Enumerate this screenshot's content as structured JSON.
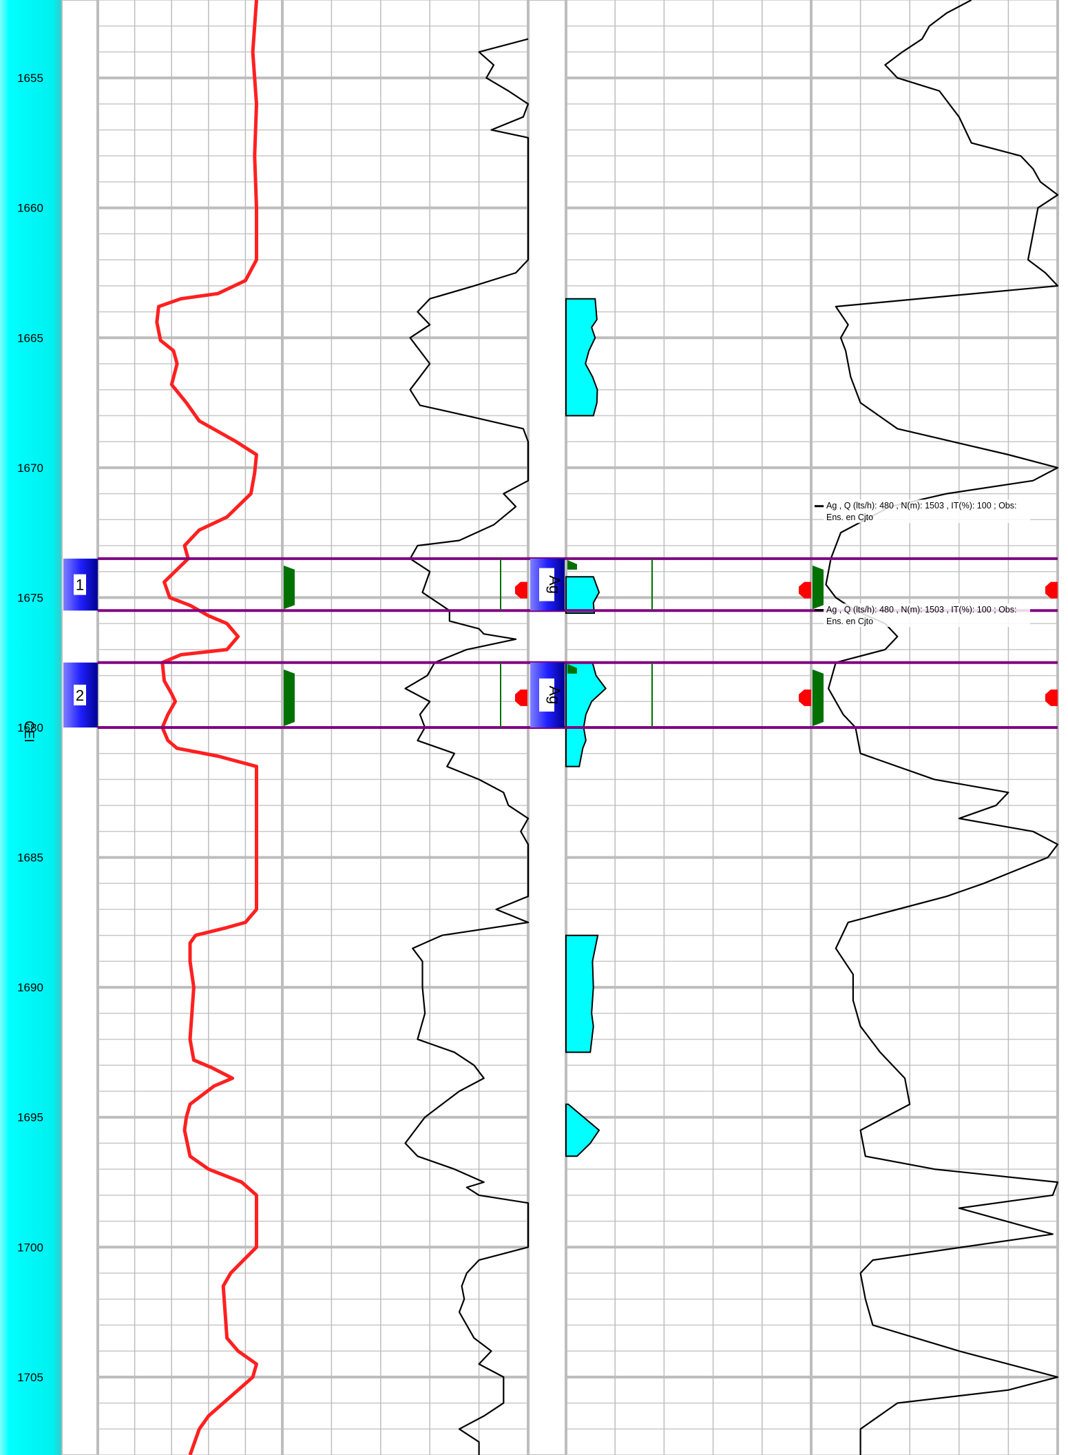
{
  "chart_data": {
    "type": "line",
    "title": "",
    "depth_axis": {
      "range": [
        1652,
        1708
      ],
      "tick_labels": [
        "1655",
        "1660",
        "1665",
        "1670",
        "1675",
        "1680",
        "1685",
        "1690",
        "1695",
        "1700",
        "1705"
      ],
      "formation_label": "CEI",
      "orientation": "depth increases downward"
    },
    "intervals": [
      {
        "label": "1",
        "fluid": "Ag",
        "top": 1673.5,
        "base": 1675.5
      },
      {
        "label": "2",
        "fluid": "Ag",
        "top": 1677.5,
        "base": 1680.0
      }
    ],
    "annotations": [
      {
        "line1": "Ag , Q (lts/h): 480 , N(m): 1503 , IT(%): 100 ; Obs:",
        "line2": "Ens. en Cjto"
      },
      {
        "line1": "Ag , Q (lts/h): 480 , N(m): 1503 , IT(%): 100 ; Obs:",
        "line2": "Ens. en Cjto"
      }
    ],
    "tracks": [
      {
        "name": "",
        "color": "#ff2020",
        "range": [
          0,
          1
        ],
        "points": [
          [
            1652.0,
            0.86
          ],
          [
            1654.0,
            0.84
          ],
          [
            1656.0,
            0.86
          ],
          [
            1658.0,
            0.85
          ],
          [
            1660.0,
            0.86
          ],
          [
            1662.0,
            0.86
          ],
          [
            1662.8,
            0.8
          ],
          [
            1663.3,
            0.65
          ],
          [
            1663.5,
            0.45
          ],
          [
            1663.8,
            0.33
          ],
          [
            1664.4,
            0.32
          ],
          [
            1665.1,
            0.34
          ],
          [
            1665.5,
            0.41
          ],
          [
            1666.0,
            0.43
          ],
          [
            1666.8,
            0.4
          ],
          [
            1667.5,
            0.48
          ],
          [
            1668.2,
            0.55
          ],
          [
            1669.0,
            0.75
          ],
          [
            1669.5,
            0.86
          ],
          [
            1670.2,
            0.85
          ],
          [
            1671.0,
            0.83
          ],
          [
            1671.9,
            0.7
          ],
          [
            1672.4,
            0.55
          ],
          [
            1673.0,
            0.47
          ],
          [
            1673.5,
            0.49
          ],
          [
            1674.4,
            0.36
          ],
          [
            1675.0,
            0.39
          ],
          [
            1675.3,
            0.5
          ],
          [
            1675.7,
            0.6
          ],
          [
            1676.0,
            0.7
          ],
          [
            1676.5,
            0.76
          ],
          [
            1677.0,
            0.7
          ],
          [
            1677.2,
            0.45
          ],
          [
            1677.5,
            0.35
          ],
          [
            1678.2,
            0.36
          ],
          [
            1678.7,
            0.4
          ],
          [
            1679.0,
            0.42
          ],
          [
            1679.5,
            0.38
          ],
          [
            1680.0,
            0.35
          ],
          [
            1680.5,
            0.38
          ],
          [
            1680.8,
            0.43
          ],
          [
            1681.1,
            0.65
          ],
          [
            1681.5,
            0.86
          ],
          [
            1683.0,
            0.86
          ],
          [
            1685.0,
            0.86
          ],
          [
            1687.0,
            0.86
          ],
          [
            1687.5,
            0.8
          ],
          [
            1687.7,
            0.7
          ],
          [
            1688.0,
            0.53
          ],
          [
            1688.3,
            0.5
          ],
          [
            1689.0,
            0.5
          ],
          [
            1690.0,
            0.52
          ],
          [
            1691.0,
            0.51
          ],
          [
            1692.0,
            0.5
          ],
          [
            1692.8,
            0.52
          ],
          [
            1693.1,
            0.62
          ],
          [
            1693.5,
            0.73
          ],
          [
            1693.8,
            0.63
          ],
          [
            1694.5,
            0.5
          ],
          [
            1695.0,
            0.48
          ],
          [
            1695.5,
            0.47
          ],
          [
            1696.5,
            0.5
          ],
          [
            1697.0,
            0.6
          ],
          [
            1697.5,
            0.78
          ],
          [
            1698.0,
            0.86
          ],
          [
            1700.0,
            0.86
          ],
          [
            1700.5,
            0.79
          ],
          [
            1701.0,
            0.72
          ],
          [
            1701.5,
            0.68
          ],
          [
            1702.5,
            0.69
          ],
          [
            1703.5,
            0.7
          ],
          [
            1704.0,
            0.76
          ],
          [
            1704.5,
            0.86
          ],
          [
            1705.0,
            0.84
          ],
          [
            1705.5,
            0.76
          ],
          [
            1706.0,
            0.68
          ],
          [
            1706.5,
            0.6
          ],
          [
            1707.0,
            0.55
          ],
          [
            1708.0,
            0.5
          ]
        ]
      },
      {
        "name": "",
        "color": "#000000",
        "range": [
          0,
          1
        ],
        "points": [
          [
            1653.5,
            1.0
          ],
          [
            1654.0,
            0.8
          ],
          [
            1654.5,
            0.86
          ],
          [
            1655.0,
            0.83
          ],
          [
            1655.5,
            0.92
          ],
          [
            1656.0,
            1.0
          ],
          [
            1656.5,
            0.98
          ],
          [
            1657.0,
            0.85
          ],
          [
            1657.3,
            1.0
          ],
          [
            1662.0,
            1.0
          ],
          [
            1662.5,
            0.95
          ],
          [
            1663.0,
            0.78
          ],
          [
            1663.5,
            0.6
          ],
          [
            1664.0,
            0.55
          ],
          [
            1664.5,
            0.6
          ],
          [
            1665.0,
            0.52
          ],
          [
            1666.0,
            0.6
          ],
          [
            1666.5,
            0.56
          ],
          [
            1667.0,
            0.52
          ],
          [
            1667.6,
            0.56
          ],
          [
            1668.0,
            0.75
          ],
          [
            1668.5,
            0.98
          ],
          [
            1669.0,
            1.0
          ],
          [
            1670.5,
            1.0
          ],
          [
            1671.0,
            0.9
          ],
          [
            1671.5,
            0.95
          ],
          [
            1672.2,
            0.86
          ],
          [
            1672.8,
            0.72
          ],
          [
            1673.0,
            0.55
          ],
          [
            1673.5,
            0.52
          ],
          [
            1674.0,
            0.6
          ],
          [
            1674.8,
            0.57
          ],
          [
            1675.5,
            0.68
          ],
          [
            1675.9,
            0.68
          ],
          [
            1676.2,
            0.8
          ],
          [
            1676.4,
            0.82
          ],
          [
            1676.6,
            0.95
          ],
          [
            1677.0,
            0.75
          ],
          [
            1677.5,
            0.62
          ],
          [
            1678.0,
            0.59
          ],
          [
            1678.5,
            0.5
          ],
          [
            1679.0,
            0.6
          ],
          [
            1679.5,
            0.56
          ],
          [
            1680.0,
            0.58
          ],
          [
            1680.5,
            0.55
          ],
          [
            1681.0,
            0.7
          ],
          [
            1681.5,
            0.67
          ],
          [
            1682.0,
            0.8
          ],
          [
            1682.5,
            0.9
          ],
          [
            1683.0,
            0.92
          ],
          [
            1683.5,
            1.0
          ],
          [
            1684.0,
            0.97
          ],
          [
            1684.5,
            1.0
          ],
          [
            1686.5,
            1.0
          ],
          [
            1687.0,
            0.87
          ],
          [
            1687.5,
            1.0
          ],
          [
            1688.0,
            0.65
          ],
          [
            1688.5,
            0.53
          ],
          [
            1689.0,
            0.57
          ],
          [
            1690.0,
            0.57
          ],
          [
            1691.0,
            0.58
          ],
          [
            1692.0,
            0.55
          ],
          [
            1692.5,
            0.7
          ],
          [
            1693.0,
            0.78
          ],
          [
            1693.5,
            0.82
          ],
          [
            1694.0,
            0.72
          ],
          [
            1695.0,
            0.58
          ],
          [
            1696.0,
            0.5
          ],
          [
            1696.5,
            0.55
          ],
          [
            1697.0,
            0.7
          ],
          [
            1697.5,
            0.82
          ],
          [
            1697.7,
            0.75
          ],
          [
            1698.0,
            0.8
          ],
          [
            1698.3,
            1.0
          ],
          [
            1700.0,
            1.0
          ],
          [
            1700.5,
            0.8
          ],
          [
            1701.0,
            0.75
          ],
          [
            1701.5,
            0.73
          ],
          [
            1702.0,
            0.74
          ],
          [
            1702.5,
            0.72
          ],
          [
            1703.5,
            0.78
          ],
          [
            1704.0,
            0.85
          ],
          [
            1704.5,
            0.8
          ],
          [
            1705.0,
            0.9
          ],
          [
            1706.0,
            0.9
          ],
          [
            1706.5,
            0.82
          ],
          [
            1707.0,
            0.72
          ],
          [
            1707.5,
            0.8
          ],
          [
            1708.0,
            0.8
          ]
        ]
      },
      {
        "name": "",
        "color": "#00ffff",
        "fill": true,
        "range": [
          0,
          1
        ],
        "segments": [
          [
            [
              1663.5,
              0.66
            ],
            [
              1664.3,
              0.7
            ],
            [
              1664.6,
              0.58
            ],
            [
              1665.0,
              0.66
            ],
            [
              1665.5,
              0.52
            ],
            [
              1666.0,
              0.44
            ],
            [
              1666.5,
              0.6
            ],
            [
              1667.0,
              0.71
            ],
            [
              1667.5,
              0.7
            ],
            [
              1668.0,
              0.62
            ]
          ],
          [
            [
              1674.2,
              0.62
            ],
            [
              1674.8,
              0.75
            ],
            [
              1675.2,
              0.62
            ],
            [
              1675.6,
              0.64
            ]
          ],
          [
            [
              1677.5,
              0.6
            ],
            [
              1678.0,
              0.68
            ],
            [
              1678.5,
              0.9
            ],
            [
              1679.0,
              0.58
            ],
            [
              1679.5,
              0.45
            ],
            [
              1680.0,
              0.4
            ],
            [
              1680.5,
              0.45
            ],
            [
              1680.8,
              0.38
            ],
            [
              1681.5,
              0.3
            ]
          ],
          [
            [
              1688.0,
              0.72
            ],
            [
              1688.5,
              0.66
            ],
            [
              1689.0,
              0.6
            ],
            [
              1690.0,
              0.62
            ],
            [
              1691.0,
              0.58
            ],
            [
              1691.5,
              0.62
            ],
            [
              1692.5,
              0.55
            ]
          ],
          [
            [
              1694.5,
              0.05
            ],
            [
              1695.5,
              0.75
            ],
            [
              1696.0,
              0.55
            ],
            [
              1696.5,
              0.25
            ]
          ]
        ]
      },
      {
        "name": "",
        "color": "#000000",
        "range": [
          0,
          1
        ],
        "points": [
          [
            1652.0,
            0.65
          ],
          [
            1652.5,
            0.55
          ],
          [
            1653.0,
            0.48
          ],
          [
            1653.5,
            0.45
          ],
          [
            1654.0,
            0.37
          ],
          [
            1654.5,
            0.3
          ],
          [
            1655.0,
            0.35
          ],
          [
            1655.5,
            0.52
          ],
          [
            1656.0,
            0.56
          ],
          [
            1656.5,
            0.6
          ],
          [
            1657.5,
            0.65
          ],
          [
            1658.0,
            0.85
          ],
          [
            1658.5,
            0.9
          ],
          [
            1659.0,
            0.93
          ],
          [
            1659.5,
            1.0
          ],
          [
            1660.0,
            0.92
          ],
          [
            1661.0,
            0.9
          ],
          [
            1662.0,
            0.88
          ],
          [
            1662.5,
            0.95
          ],
          [
            1663.0,
            1.0
          ],
          [
            1663.8,
            0.1
          ],
          [
            1664.5,
            0.15
          ],
          [
            1665.0,
            0.12
          ],
          [
            1665.5,
            0.14
          ],
          [
            1666.5,
            0.16
          ],
          [
            1667.5,
            0.2
          ],
          [
            1668.5,
            0.35
          ],
          [
            1669.5,
            0.8
          ],
          [
            1670.0,
            1.0
          ],
          [
            1670.5,
            0.9
          ],
          [
            1671.0,
            0.55
          ],
          [
            1671.5,
            0.32
          ],
          [
            1672.0,
            0.22
          ],
          [
            1672.5,
            0.12
          ],
          [
            1673.0,
            0.1
          ],
          [
            1673.5,
            0.08
          ],
          [
            1674.0,
            0.07
          ],
          [
            1674.5,
            0.06
          ],
          [
            1675.0,
            0.1
          ],
          [
            1675.5,
            0.18
          ],
          [
            1676.0,
            0.3
          ],
          [
            1676.5,
            0.35
          ],
          [
            1677.0,
            0.3
          ],
          [
            1677.5,
            0.1
          ],
          [
            1678.5,
            0.07
          ],
          [
            1679.5,
            0.13
          ],
          [
            1680.0,
            0.18
          ],
          [
            1681.0,
            0.2
          ],
          [
            1682.0,
            0.5
          ],
          [
            1682.5,
            0.8
          ],
          [
            1683.0,
            0.75
          ],
          [
            1683.5,
            0.6
          ],
          [
            1684.0,
            0.9
          ],
          [
            1684.5,
            1.0
          ],
          [
            1685.0,
            0.96
          ],
          [
            1686.0,
            0.7
          ],
          [
            1686.5,
            0.55
          ],
          [
            1687.0,
            0.35
          ],
          [
            1687.5,
            0.15
          ],
          [
            1688.5,
            0.1
          ],
          [
            1689.5,
            0.17
          ],
          [
            1690.5,
            0.17
          ],
          [
            1691.5,
            0.2
          ],
          [
            1692.5,
            0.28
          ],
          [
            1693.5,
            0.38
          ],
          [
            1694.5,
            0.4
          ],
          [
            1695.5,
            0.2
          ],
          [
            1696.5,
            0.22
          ],
          [
            1697.0,
            0.5
          ],
          [
            1697.5,
            1.0
          ],
          [
            1698.0,
            0.98
          ],
          [
            1698.5,
            0.6
          ],
          [
            1699.5,
            0.98
          ],
          [
            1700.5,
            0.25
          ],
          [
            1701.0,
            0.2
          ],
          [
            1702.0,
            0.22
          ],
          [
            1703.0,
            0.25
          ],
          [
            1704.0,
            0.6
          ],
          [
            1705.0,
            1.0
          ],
          [
            1705.5,
            0.8
          ],
          [
            1706.0,
            0.35
          ],
          [
            1707.0,
            0.2
          ],
          [
            1708.0,
            0.2
          ]
        ]
      }
    ]
  },
  "colors": {
    "depth_track": "#00ffff",
    "depth_track_edge": "#7fffff",
    "grid_major": "#bdbdbd",
    "grid_minor": "#c8c8c8",
    "interval_line": "#800080",
    "interval_marker": "#2222ff",
    "flag_green": "#007000",
    "flag_red": "#ff0000"
  }
}
